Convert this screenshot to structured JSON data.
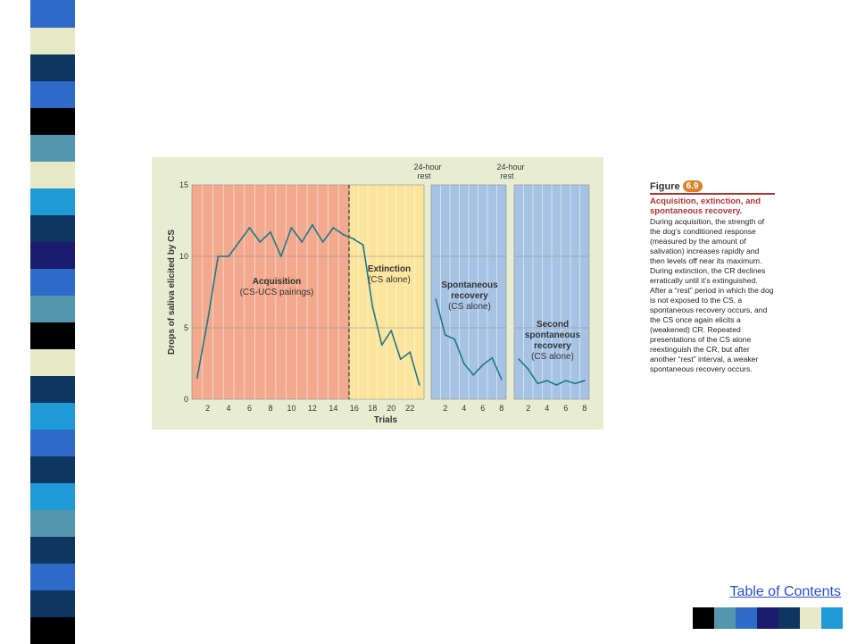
{
  "decor": {
    "strip_colors": [
      "#2e6bc9",
      "#e6e8c6",
      "#0f3660",
      "#2e6bc9",
      "#000000",
      "#5497ad",
      "#e6e8c6",
      "#1e9bd6",
      "#0f3660",
      "#1c1c6e",
      "#2e6bc9",
      "#5497ad",
      "#000000",
      "#e6e8c6",
      "#0f3660",
      "#1e9bd6",
      "#2e6bc9",
      "#0f3660",
      "#1e9bd6",
      "#5497ad",
      "#0f3660",
      "#2e6bc9",
      "#0f3660",
      "#000000"
    ],
    "swatch_colors": [
      "#000000",
      "#5497ad",
      "#2e6bc9",
      "#1c1c6e",
      "#0f3660",
      "#e6e8c6",
      "#1e9bd6"
    ]
  },
  "nav": {
    "toc_label": "Table of Contents"
  },
  "caption": {
    "figure_word": "Figure",
    "figure_num": "6.9",
    "title": "Acquisition, extinction, and spontaneous recovery.",
    "body": "During acquisition, the strength of the dog’s conditioned response (measured by the amount of salivation) increases rapidly and then levels off near its maximum. During extinction, the CR declines erratically until it’s extinguished. After a “rest” period in which the dog is not exposed to the CS, a spontaneous recovery occurs, and the CS once again elicits a (weakened) CR. Repeated presentations of the CS alone reextinguish the CR, but after another “rest” interval, a weaker spontaneous recovery occurs."
  },
  "chart_data": {
    "type": "line",
    "ylabel": "Drops of saliva elicited by CS",
    "xlabel": "Trials",
    "ylim": [
      0,
      15
    ],
    "yticks": [
      0,
      5,
      10,
      15
    ],
    "rest_label_1": "24-hour",
    "rest_label_2": "rest",
    "colors": {
      "acquisition": "#f2a98e",
      "extinction": "#fbe49b",
      "recovery": "#a7c3e3",
      "line": "#1f7a86"
    },
    "panels": [
      {
        "name": "Acquisition",
        "sublabel": "(CS-UCS pairings)",
        "x_ticks": [
          "2",
          "4",
          "6",
          "8",
          "10",
          "12",
          "14",
          "16"
        ],
        "x": [
          1,
          2,
          3,
          4,
          5,
          6,
          7,
          8,
          9,
          10,
          11,
          12,
          13,
          14,
          15,
          16
        ],
        "values": [
          1.5,
          5.5,
          10,
          10,
          11,
          12,
          11,
          11.7,
          10,
          12,
          11,
          12.2,
          11,
          12,
          11.5,
          11.2
        ]
      },
      {
        "name": "Extinction",
        "sublabel": "(CS alone)",
        "x_ticks": [
          "18",
          "20",
          "22"
        ],
        "x": [
          16,
          17,
          18,
          19,
          20,
          21,
          22,
          23
        ],
        "values": [
          11.2,
          10.8,
          6.5,
          3.8,
          4.8,
          2.8,
          3.3,
          1
        ]
      },
      {
        "name": "Spontaneous recovery",
        "sublabel": "(CS alone)",
        "x_ticks": [
          "2",
          "4",
          "6",
          "8"
        ],
        "x": [
          1,
          2,
          3,
          4,
          5,
          6,
          7,
          8
        ],
        "values": [
          7,
          4.5,
          4.2,
          2.5,
          1.7,
          2.4,
          2.9,
          1.4
        ]
      },
      {
        "name": "Second spontaneous recovery",
        "sublabel": "(CS alone)",
        "x_ticks": [
          "2",
          "4",
          "6",
          "8"
        ],
        "x": [
          1,
          2,
          3,
          4,
          5,
          6,
          7,
          8
        ],
        "values": [
          2.8,
          2.1,
          1.1,
          1.3,
          1,
          1.3,
          1.1,
          1.3
        ]
      }
    ]
  }
}
